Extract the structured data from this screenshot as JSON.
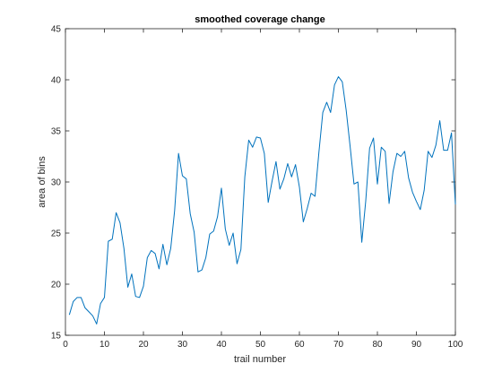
{
  "chart_data": {
    "type": "line",
    "title": "smoothed coverage change",
    "xlabel": "trail number",
    "ylabel": "area of bins",
    "xlim": [
      0,
      100
    ],
    "ylim": [
      15,
      45
    ],
    "x_ticks": [
      0,
      10,
      20,
      30,
      40,
      50,
      60,
      70,
      80,
      90,
      100
    ],
    "y_ticks": [
      15,
      20,
      25,
      30,
      35,
      40,
      45
    ],
    "grid": false,
    "box": true,
    "line_color": "#0072BD",
    "series": [
      {
        "x": [
          1,
          2,
          3,
          4,
          5,
          6,
          7,
          8,
          9,
          10,
          11,
          12,
          13,
          14,
          15,
          16,
          17,
          18,
          19,
          20,
          21,
          22,
          23,
          24,
          25,
          26,
          27,
          28,
          29,
          30,
          31,
          32,
          33,
          34,
          35,
          36,
          37,
          38,
          39,
          40,
          41,
          42,
          43,
          44,
          45,
          46,
          47,
          48,
          49,
          50,
          51,
          52,
          53,
          54,
          55,
          56,
          57,
          58,
          59,
          60,
          61,
          62,
          63,
          64,
          65,
          66,
          67,
          68,
          69,
          70,
          71,
          72,
          73,
          74,
          75,
          76,
          77,
          78,
          79,
          80,
          81,
          82,
          83,
          84,
          85,
          86,
          87,
          88,
          89,
          90,
          91,
          92,
          93,
          94,
          95,
          96,
          97,
          98,
          99,
          100
        ],
        "y": [
          17.0,
          18.3,
          18.7,
          18.7,
          17.7,
          17.3,
          16.9,
          16.1,
          18.1,
          18.7,
          24.2,
          24.4,
          27.0,
          26.0,
          23.5,
          19.7,
          21.0,
          18.8,
          18.7,
          19.8,
          22.6,
          23.3,
          23.0,
          21.5,
          23.9,
          21.9,
          23.5,
          27.2,
          32.8,
          30.6,
          30.3,
          26.9,
          25.1,
          21.2,
          21.4,
          22.6,
          24.9,
          25.2,
          26.6,
          29.4,
          25.4,
          23.8,
          25.0,
          22.0,
          23.4,
          30.5,
          34.1,
          33.4,
          34.4,
          34.3,
          32.8,
          28.0,
          30.1,
          32.0,
          29.3,
          30.3,
          31.8,
          30.5,
          31.7,
          29.5,
          26.1,
          27.4,
          28.9,
          28.6,
          32.9,
          36.8,
          37.8,
          36.8,
          39.5,
          40.3,
          39.8,
          37.0,
          33.5,
          29.8,
          30.0,
          24.1,
          28.1,
          33.3,
          34.3,
          29.8,
          33.4,
          33.0,
          27.9,
          31.0,
          32.8,
          32.5,
          33.0,
          30.4,
          29.0,
          28.1,
          27.3,
          29.2,
          33.0,
          32.4,
          33.6,
          36.0,
          33.1,
          33.1,
          34.8,
          27.8
        ]
      }
    ]
  }
}
